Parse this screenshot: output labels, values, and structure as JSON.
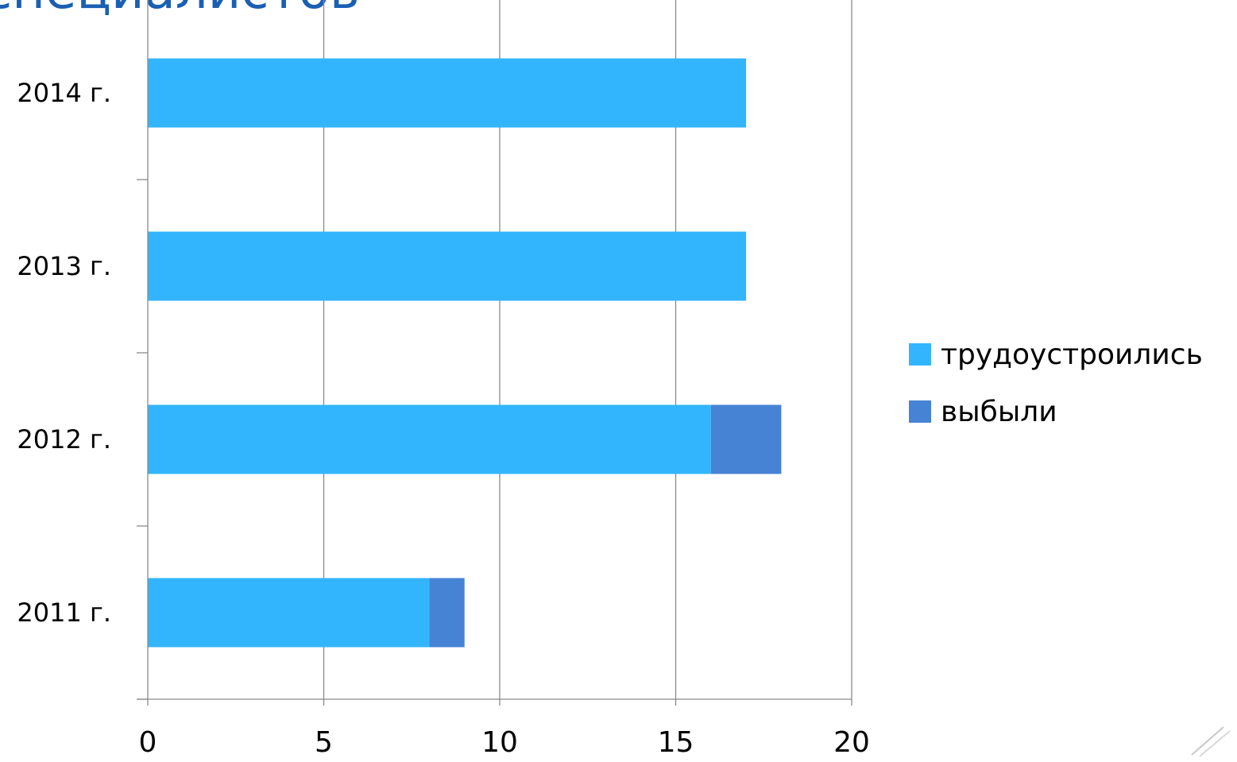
{
  "page": {
    "title_fragment": "специалистов"
  },
  "chart_data": {
    "type": "bar",
    "orientation": "horizontal",
    "stacked": true,
    "categories": [
      "2011 г.",
      "2012 г.",
      "2013 г.",
      "2014 г."
    ],
    "series": [
      {
        "name": "трудоустроились",
        "values": [
          8,
          16,
          17,
          17
        ],
        "color": "#33b5fd"
      },
      {
        "name": "выбыли",
        "values": [
          1,
          2,
          0,
          0
        ],
        "color": "#4683d5"
      }
    ],
    "xlim": [
      0,
      20
    ],
    "xticks": [
      0,
      5,
      10,
      15,
      20
    ],
    "xlabel": "",
    "ylabel": "",
    "grid": "vertical",
    "legend_position": "right"
  }
}
